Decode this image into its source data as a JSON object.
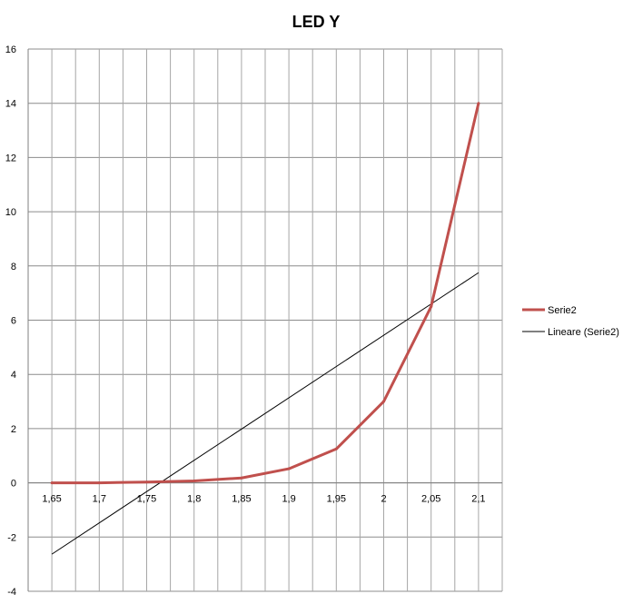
{
  "chart_data": {
    "type": "line",
    "title": "LED Y",
    "xlabel": "",
    "ylabel": "",
    "categories": [
      "1,65",
      "1,7",
      "1,75",
      "1,8",
      "1,85",
      "1,9",
      "1,95",
      "2",
      "2,05",
      "2,1"
    ],
    "ylim": [
      -4,
      16
    ],
    "yticks": [
      "-4",
      "-2",
      "0",
      "2",
      "4",
      "6",
      "8",
      "10",
      "12",
      "14",
      "16"
    ],
    "grid": true,
    "legend_position": "right",
    "series": [
      {
        "name": "Serie2",
        "color": "#C0504D",
        "values": [
          0.0,
          0.0,
          0.03,
          0.07,
          0.18,
          0.52,
          1.25,
          3.0,
          6.5,
          14.0
        ]
      }
    ],
    "trendline": {
      "name": "Lineare (Serie2)",
      "color": "#000000",
      "type": "linear",
      "start_value": -2.63,
      "end_value": 7.75
    }
  }
}
